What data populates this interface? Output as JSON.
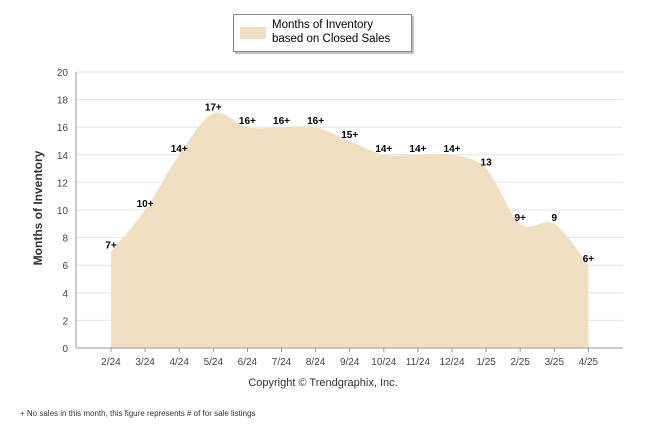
{
  "chart_data": {
    "type": "area",
    "categories": [
      "2/24",
      "3/24",
      "4/24",
      "5/24",
      "6/24",
      "7/24",
      "8/24",
      "9/24",
      "10/24",
      "11/24",
      "12/24",
      "1/25",
      "2/25",
      "3/25",
      "4/25"
    ],
    "series": [
      {
        "name": "Months of Inventory based on Closed Sales",
        "values": [
          7,
          10,
          14,
          17,
          16,
          16,
          16,
          15,
          14,
          14,
          14,
          13,
          9,
          9,
          6
        ],
        "labels": [
          "7+",
          "10+",
          "14+",
          "17+",
          "16+",
          "16+",
          "16+",
          "15+",
          "14+",
          "14+",
          "14+",
          "13",
          "9+",
          "9",
          "6+"
        ],
        "color": "#f0dfc3"
      }
    ],
    "ylabel": "Months of Inventory",
    "xlabel": "",
    "ylim": [
      0,
      20
    ],
    "yticks": [
      0,
      2,
      4,
      6,
      8,
      10,
      12,
      14,
      16,
      18,
      20
    ],
    "grid": true,
    "legend_placement": "top"
  },
  "copyright": "Copyright © Trendgraphix, Inc.",
  "footnote": "+ No sales in this month, this figure represents # of for sale listings"
}
